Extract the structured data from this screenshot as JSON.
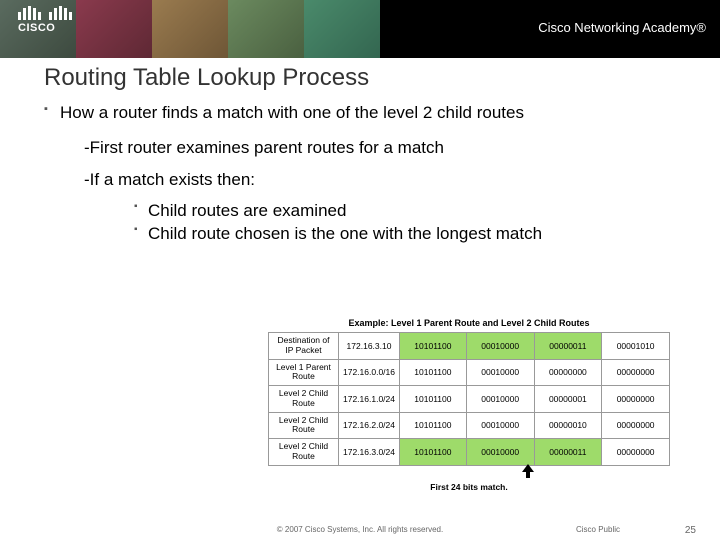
{
  "banner": {
    "logo_text": "CISCO",
    "academy_text": "Cisco Networking Academy®",
    "photo_colors": [
      "#5a6b5f",
      "#8a3a4d",
      "#9a7b4f",
      "#6b8a5f",
      "#4a8a6b"
    ]
  },
  "title": "Routing Table Lookup Process",
  "bullet_main": "How a router finds a match with one of the level 2 child routes",
  "dash1": "-First router examines parent routes for a match",
  "dash2": "-If a match exists then:",
  "sub1": "Child routes are examined",
  "sub2": "Child route chosen is the one with the longest match",
  "figure": {
    "caption": "Example: Level 1 Parent Route and Level 2 Child Routes",
    "rows": [
      {
        "label": "Destination of IP Packet",
        "ip": "172.16.3.10",
        "oct1": "10101100",
        "oct2": "00010000",
        "oct3": "00000011",
        "oct4": "00001010",
        "hl": [
          true,
          true,
          true,
          false
        ]
      },
      {
        "label": "Level 1 Parent Route",
        "ip": "172.16.0.0/16",
        "oct1": "10101100",
        "oct2": "00010000",
        "oct3": "00000000",
        "oct4": "00000000",
        "hl": [
          false,
          false,
          false,
          false
        ]
      },
      {
        "label": "Level 2 Child Route",
        "ip": "172.16.1.0/24",
        "oct1": "10101100",
        "oct2": "00010000",
        "oct3": "00000001",
        "oct4": "00000000",
        "hl": [
          false,
          false,
          false,
          false
        ]
      },
      {
        "label": "Level 2 Child Route",
        "ip": "172.16.2.0/24",
        "oct1": "10101100",
        "oct2": "00010000",
        "oct3": "00000010",
        "oct4": "00000000",
        "hl": [
          false,
          false,
          false,
          false
        ]
      },
      {
        "label": "Level 2 Child Route",
        "ip": "172.16.3.0/24",
        "oct1": "10101100",
        "oct2": "00010000",
        "oct3": "00000011",
        "oct4": "00000000",
        "hl": [
          true,
          true,
          true,
          false
        ]
      }
    ],
    "footer": "First 24 bits match.",
    "highlight_color": "#9edb6a"
  },
  "footer": {
    "copyright": "© 2007 Cisco Systems, Inc. All rights reserved.",
    "public": "Cisco Public",
    "page": "25"
  },
  "styling": {
    "title_fontsize": 24,
    "body_fontsize": 17,
    "table_fontsize": 8.5,
    "banner_bg": "#000000",
    "highlight": "#9edb6a",
    "border_color": "#999999",
    "text_color": "#000000",
    "footer_color": "#666666"
  }
}
